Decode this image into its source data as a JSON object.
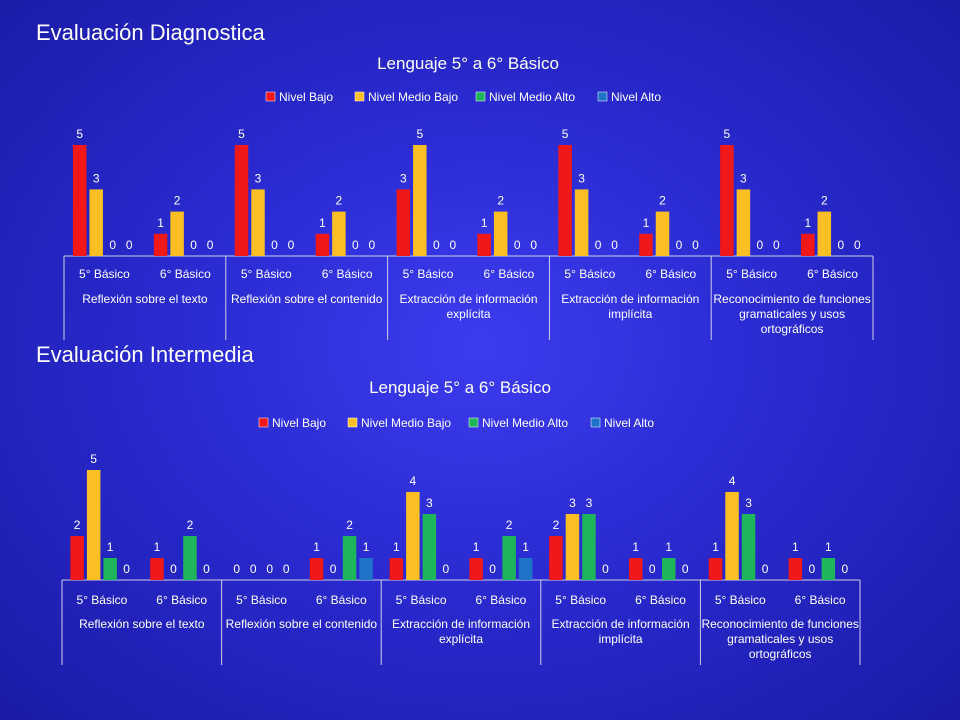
{
  "sections": [
    {
      "title": "Evaluación Diagnostica"
    },
    {
      "title": "Evaluación Intermedia"
    }
  ],
  "colors": {
    "Nivel Bajo": "#f01818",
    "Nivel Medio Bajo": "#fbbf24",
    "Nivel Medio Alto": "#1fb55a",
    "Nivel Alto": "#1f74c9"
  },
  "chart_data": [
    {
      "type": "bar",
      "title": "Lenguaje 5° a 6° Básico",
      "series_names": [
        "Nivel Bajo",
        "Nivel  Medio Bajo",
        "Nivel Medio Alto",
        "Nivel Alto"
      ],
      "groups": [
        {
          "label": "Reflexión sobre el texto",
          "subcategories": [
            "5° Básico",
            "6° Básico"
          ]
        },
        {
          "label": "Reflexión sobre el contenido",
          "subcategories": [
            "5° Básico",
            "6° Básico"
          ]
        },
        {
          "label": "Extracción de información explícita",
          "subcategories": [
            "5° Básico",
            "6° Básico"
          ]
        },
        {
          "label": "Extracción de información implícita",
          "subcategories": [
            "5° Básico",
            "6° Básico"
          ]
        },
        {
          "label": "Reconocimiento de funciones gramaticales y usos ortográficos",
          "subcategories": [
            "5° Básico",
            "6° Básico"
          ]
        }
      ],
      "values": [
        [
          [
            5,
            3,
            0,
            0
          ],
          [
            1,
            2,
            0,
            0
          ]
        ],
        [
          [
            5,
            3,
            0,
            0
          ],
          [
            1,
            2,
            0,
            0
          ]
        ],
        [
          [
            3,
            5,
            0,
            0
          ],
          [
            1,
            2,
            0,
            0
          ]
        ],
        [
          [
            5,
            3,
            0,
            0
          ],
          [
            1,
            2,
            0,
            0
          ]
        ],
        [
          [
            5,
            3,
            0,
            0
          ],
          [
            1,
            2,
            0,
            0
          ]
        ]
      ]
    },
    {
      "type": "bar",
      "title": "Lenguaje 5° a 6° Básico",
      "series_names": [
        "Nivel Bajo",
        "Nivel  Medio Bajo",
        "Nivel Medio Alto",
        "Nivel Alto"
      ],
      "groups": [
        {
          "label": "Reflexión sobre el texto",
          "subcategories": [
            "5° Básico",
            "6° Básico"
          ]
        },
        {
          "label": "Reflexión sobre el contenido",
          "subcategories": [
            "5° Básico",
            "6° Básico"
          ]
        },
        {
          "label": "Extracción de información explícita",
          "subcategories": [
            "5° Básico",
            "6° Básico"
          ]
        },
        {
          "label": "Extracción de información implícita",
          "subcategories": [
            "5° Básico",
            "6° Básico"
          ]
        },
        {
          "label": "Reconocimiento de funciones gramaticales y usos ortográficos",
          "subcategories": [
            "5° Básico",
            "6° Básico"
          ]
        }
      ],
      "values": [
        [
          [
            2,
            5,
            1,
            0
          ],
          [
            1,
            0,
            2,
            0
          ]
        ],
        [
          [
            0,
            0,
            0,
            0
          ],
          [
            1,
            0,
            2,
            1
          ]
        ],
        [
          [
            1,
            4,
            3,
            0
          ],
          [
            1,
            0,
            2,
            1
          ]
        ],
        [
          [
            2,
            3,
            3,
            0
          ],
          [
            1,
            0,
            1,
            0
          ]
        ],
        [
          [
            1,
            4,
            3,
            0
          ],
          [
            1,
            0,
            1,
            0
          ]
        ]
      ]
    }
  ]
}
